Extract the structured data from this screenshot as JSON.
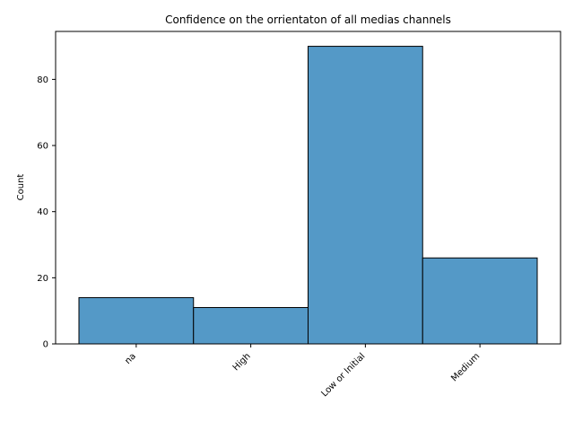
{
  "chart_data": {
    "type": "bar",
    "title": "Confidence on the orrientaton of all medias channels",
    "xlabel": "",
    "ylabel": "Count",
    "categories": [
      "na",
      "High",
      "Low or Initial",
      "Medium"
    ],
    "values": [
      14,
      11,
      90,
      26
    ],
    "ylim": [
      0,
      94.5
    ],
    "yticks": [
      0,
      20,
      40,
      60,
      80
    ],
    "bar_color": "#5499c7",
    "bar_edge_color": "#000000",
    "grid": false,
    "legend": "none"
  }
}
